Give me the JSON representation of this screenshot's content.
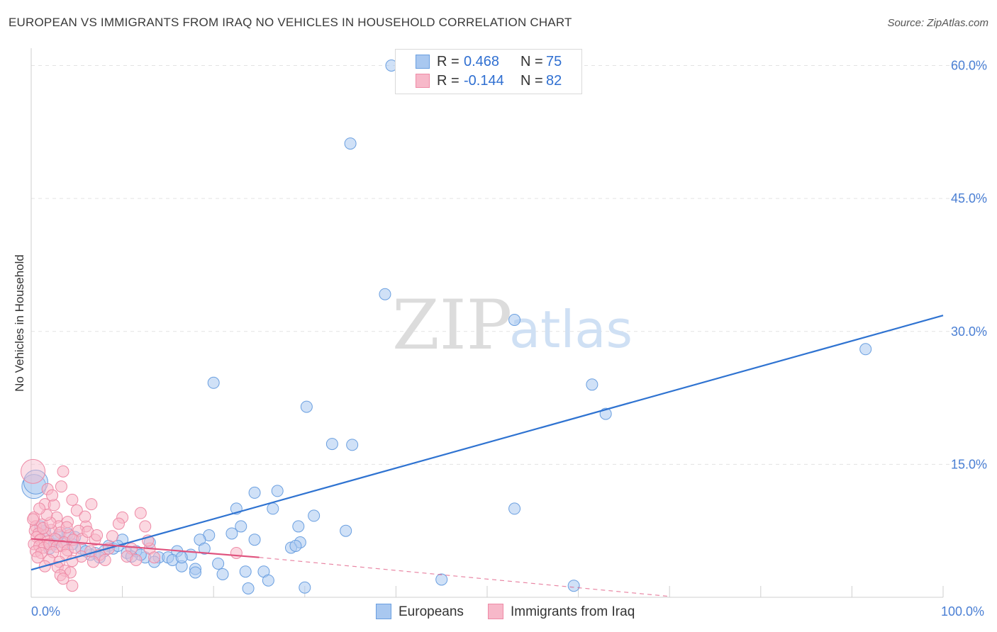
{
  "title": "EUROPEAN VS IMMIGRANTS FROM IRAQ NO VEHICLES IN HOUSEHOLD CORRELATION CHART",
  "source": "Source: ZipAtlas.com",
  "watermark": {
    "zip": "ZIP",
    "atlas": "atlas"
  },
  "legend": {
    "rows": [
      {
        "r_label": "R =",
        "r_value": "0.468",
        "n_label": "N =",
        "n_value": "75",
        "color": "#a9c8f0"
      },
      {
        "r_label": "R =",
        "r_value": "-0.144",
        "n_label": "N =",
        "n_value": "82",
        "color": "#f7b8c9"
      }
    ]
  },
  "bottom_legend": {
    "europeans": "Europeans",
    "iraq": "Immigrants from Iraq"
  },
  "chart_data": {
    "type": "scatter",
    "title": "EUROPEAN VS IMMIGRANTS FROM IRAQ NO VEHICLES IN HOUSEHOLD CORRELATION CHART",
    "xlabel": "",
    "ylabel": "No Vehicles in Household",
    "xlim": [
      0,
      100
    ],
    "ylim": [
      0,
      61
    ],
    "x_tick_labels": [
      "0.0%",
      "100.0%"
    ],
    "y_ticks": [
      15,
      30,
      45,
      60
    ],
    "y_tick_labels": [
      "15.0%",
      "30.0%",
      "45.0%",
      "60.0%"
    ],
    "grid": true,
    "legend_position": "top-center",
    "series": [
      {
        "name": "Europeans",
        "color": "#a9c8f0",
        "stroke": "#6a9fe0",
        "line_color": "#2f73d1",
        "trend": {
          "x": [
            0,
            100
          ],
          "y": [
            3.1,
            31.8
          ]
        },
        "points": [
          [
            39.5,
            60.0
          ],
          [
            35.0,
            51.2
          ],
          [
            38.8,
            34.2
          ],
          [
            53.0,
            31.3
          ],
          [
            91.5,
            28.0
          ],
          [
            61.5,
            24.0
          ],
          [
            20.0,
            24.2
          ],
          [
            63.0,
            20.7
          ],
          [
            30.2,
            21.5
          ],
          [
            33.0,
            17.3
          ],
          [
            35.2,
            17.2
          ],
          [
            0.3,
            12.5
          ],
          [
            0.5,
            13.0
          ],
          [
            27.0,
            12.0
          ],
          [
            24.5,
            11.8
          ],
          [
            22.5,
            10.0
          ],
          [
            26.5,
            10.0
          ],
          [
            53.0,
            10.0
          ],
          [
            31.0,
            9.2
          ],
          [
            34.5,
            7.5
          ],
          [
            29.3,
            8.0
          ],
          [
            23.0,
            8.0
          ],
          [
            19.5,
            7.0
          ],
          [
            22.0,
            7.2
          ],
          [
            18.5,
            6.5
          ],
          [
            24.5,
            6.5
          ],
          [
            29.5,
            6.2
          ],
          [
            28.5,
            5.6
          ],
          [
            29.0,
            5.8
          ],
          [
            19.0,
            5.5
          ],
          [
            13.0,
            6.2
          ],
          [
            10.0,
            6.5
          ],
          [
            8.5,
            5.8
          ],
          [
            9.0,
            5.5
          ],
          [
            10.5,
            5.0
          ],
          [
            12.5,
            4.5
          ],
          [
            14.0,
            4.5
          ],
          [
            16.0,
            5.2
          ],
          [
            17.5,
            4.8
          ],
          [
            15.0,
            4.5
          ],
          [
            8.0,
            5.2
          ],
          [
            7.0,
            5.0
          ],
          [
            6.5,
            4.8
          ],
          [
            5.5,
            5.5
          ],
          [
            4.5,
            6.0
          ],
          [
            3.5,
            6.2
          ],
          [
            2.5,
            6.0
          ],
          [
            2.0,
            5.5
          ],
          [
            1.5,
            7.5
          ],
          [
            1.0,
            8.0
          ],
          [
            3.0,
            7.0
          ],
          [
            4.0,
            7.2
          ],
          [
            4.8,
            6.8
          ],
          [
            6.0,
            5.2
          ],
          [
            7.5,
            4.5
          ],
          [
            11.5,
            5.2
          ],
          [
            12.0,
            4.8
          ],
          [
            13.5,
            4.0
          ],
          [
            15.5,
            4.2
          ],
          [
            16.5,
            3.5
          ],
          [
            18.0,
            3.2
          ],
          [
            20.5,
            3.8
          ],
          [
            21.0,
            2.6
          ],
          [
            23.5,
            2.9
          ],
          [
            25.5,
            2.9
          ],
          [
            23.8,
            1.0
          ],
          [
            26.0,
            1.9
          ],
          [
            30.0,
            1.1
          ],
          [
            45.0,
            2.0
          ],
          [
            59.5,
            1.3
          ],
          [
            18.0,
            2.8
          ],
          [
            16.5,
            4.5
          ],
          [
            11.0,
            4.6
          ],
          [
            9.5,
            5.8
          ],
          [
            2.8,
            6.5
          ]
        ]
      },
      {
        "name": "Immigrants from Iraq",
        "color": "#f7b8c9",
        "stroke": "#ee8aa6",
        "line_color": "#e0537e",
        "trend": {
          "x": [
            0,
            25
          ],
          "y": [
            6.6,
            4.5
          ]
        },
        "trend_extension": {
          "x": [
            25,
            70
          ],
          "y": [
            4.5,
            0.1
          ]
        },
        "points": [
          [
            0.2,
            14.2
          ],
          [
            3.5,
            14.2
          ],
          [
            1.8,
            12.2
          ],
          [
            4.5,
            11.0
          ],
          [
            1.5,
            10.5
          ],
          [
            2.5,
            10.4
          ],
          [
            5.0,
            9.8
          ],
          [
            0.3,
            9.0
          ],
          [
            2.8,
            9.0
          ],
          [
            10.0,
            9.0
          ],
          [
            12.0,
            9.5
          ],
          [
            0.5,
            8.0
          ],
          [
            1.2,
            8.2
          ],
          [
            3.0,
            8.0
          ],
          [
            4.0,
            8.5
          ],
          [
            6.0,
            8.0
          ],
          [
            12.5,
            8.0
          ],
          [
            0.4,
            7.5
          ],
          [
            0.8,
            7.2
          ],
          [
            1.6,
            7.0
          ],
          [
            2.2,
            7.6
          ],
          [
            3.2,
            7.3
          ],
          [
            4.2,
            7.0
          ],
          [
            5.2,
            7.5
          ],
          [
            0.6,
            6.8
          ],
          [
            1.0,
            6.5
          ],
          [
            1.8,
            6.3
          ],
          [
            2.6,
            6.6
          ],
          [
            3.6,
            6.2
          ],
          [
            4.6,
            6.5
          ],
          [
            5.6,
            6.6
          ],
          [
            7.0,
            6.5
          ],
          [
            0.3,
            6.0
          ],
          [
            0.9,
            5.8
          ],
          [
            1.4,
            5.6
          ],
          [
            2.0,
            6.0
          ],
          [
            2.8,
            5.7
          ],
          [
            3.4,
            5.8
          ],
          [
            4.0,
            5.3
          ],
          [
            4.8,
            5.6
          ],
          [
            6.5,
            5.2
          ],
          [
            8.5,
            5.5
          ],
          [
            11.0,
            5.5
          ],
          [
            13.0,
            5.5
          ],
          [
            0.5,
            5.2
          ],
          [
            1.1,
            5.0
          ],
          [
            2.4,
            5.1
          ],
          [
            3.8,
            4.8
          ],
          [
            5.5,
            4.6
          ],
          [
            7.5,
            4.8
          ],
          [
            10.5,
            4.6
          ],
          [
            11.5,
            4.2
          ],
          [
            22.5,
            5.0
          ],
          [
            0.7,
            4.5
          ],
          [
            2.0,
            4.2
          ],
          [
            3.1,
            4.0
          ],
          [
            4.5,
            4.1
          ],
          [
            6.8,
            4.0
          ],
          [
            1.5,
            3.5
          ],
          [
            2.9,
            3.4
          ],
          [
            3.7,
            3.0
          ],
          [
            4.3,
            2.8
          ],
          [
            3.2,
            2.5
          ],
          [
            3.5,
            2.1
          ],
          [
            4.5,
            1.3
          ],
          [
            1.3,
            7.8
          ],
          [
            2.1,
            8.4
          ],
          [
            3.9,
            7.9
          ],
          [
            6.2,
            7.4
          ],
          [
            0.2,
            8.8
          ],
          [
            1.7,
            9.3
          ],
          [
            5.9,
            9.1
          ],
          [
            7.2,
            7.0
          ],
          [
            8.9,
            6.9
          ],
          [
            12.8,
            6.4
          ],
          [
            0.9,
            10.0
          ],
          [
            2.3,
            11.5
          ],
          [
            3.3,
            12.5
          ],
          [
            6.6,
            10.5
          ],
          [
            9.6,
            8.3
          ],
          [
            13.5,
            4.5
          ],
          [
            8.1,
            4.2
          ]
        ]
      }
    ]
  }
}
